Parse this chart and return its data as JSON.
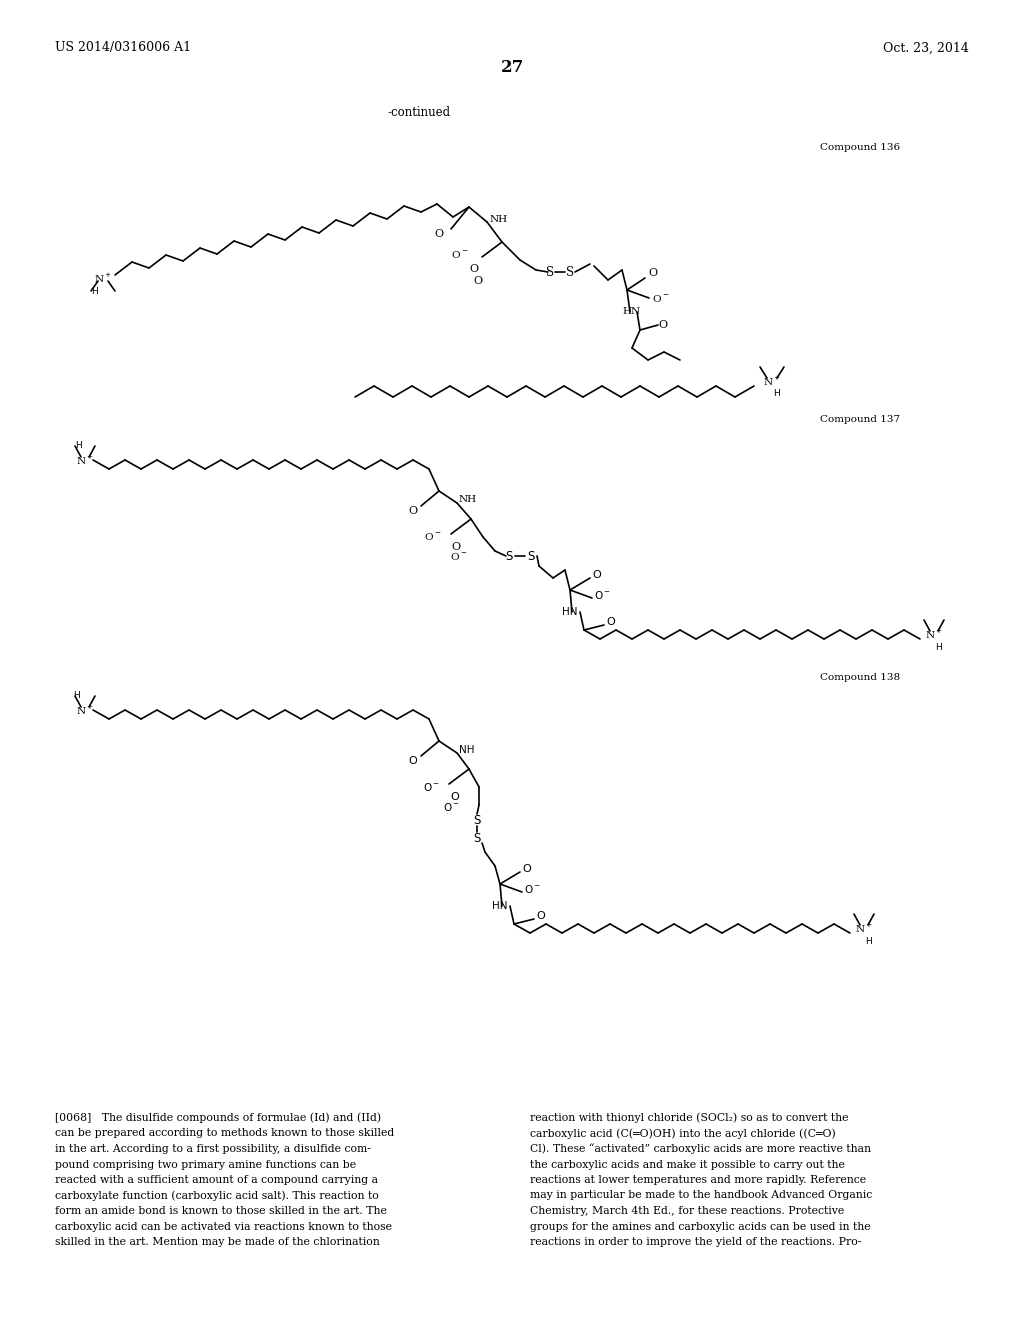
{
  "background_color": "#ffffff",
  "page_number": "27",
  "header_left": "US 2014/0316006 A1",
  "header_right": "Oct. 23, 2014",
  "continued_text": "-continued",
  "compound_136_label": "Compound 136",
  "compound_137_label": "Compound 137",
  "compound_138_label": "Compound 138",
  "left_col_text": [
    "[0068]   The disulfide compounds of formulae (Id) and (IId)",
    "can be prepared according to methods known to those skilled",
    "in the art. According to a first possibility, a disulfide com-",
    "pound comprising two primary amine functions can be",
    "reacted with a sufficient amount of a compound carrying a",
    "carboxylate function (carboxylic acid salt). This reaction to",
    "form an amide bond is known to those skilled in the art. The",
    "carboxylic acid can be activated via reactions known to those",
    "skilled in the art. Mention may be made of the chlorination"
  ],
  "right_col_text": [
    "reaction with thionyl chloride (SOCl₂) so as to convert the",
    "carboxylic acid (C(═O)OH) into the acyl chloride ((C═O)",
    "Cl). These “activated” carboxylic acids are more reactive than",
    "the carboxylic acids and make it possible to carry out the",
    "reactions at lower temperatures and more rapidly. Reference",
    "may in particular be made to the handbook Advanced Organic",
    "Chemistry, March 4th Ed., for these reactions. Protective",
    "groups for the amines and carboxylic acids can be used in the",
    "reactions in order to improve the yield of the reactions. Pro-"
  ]
}
